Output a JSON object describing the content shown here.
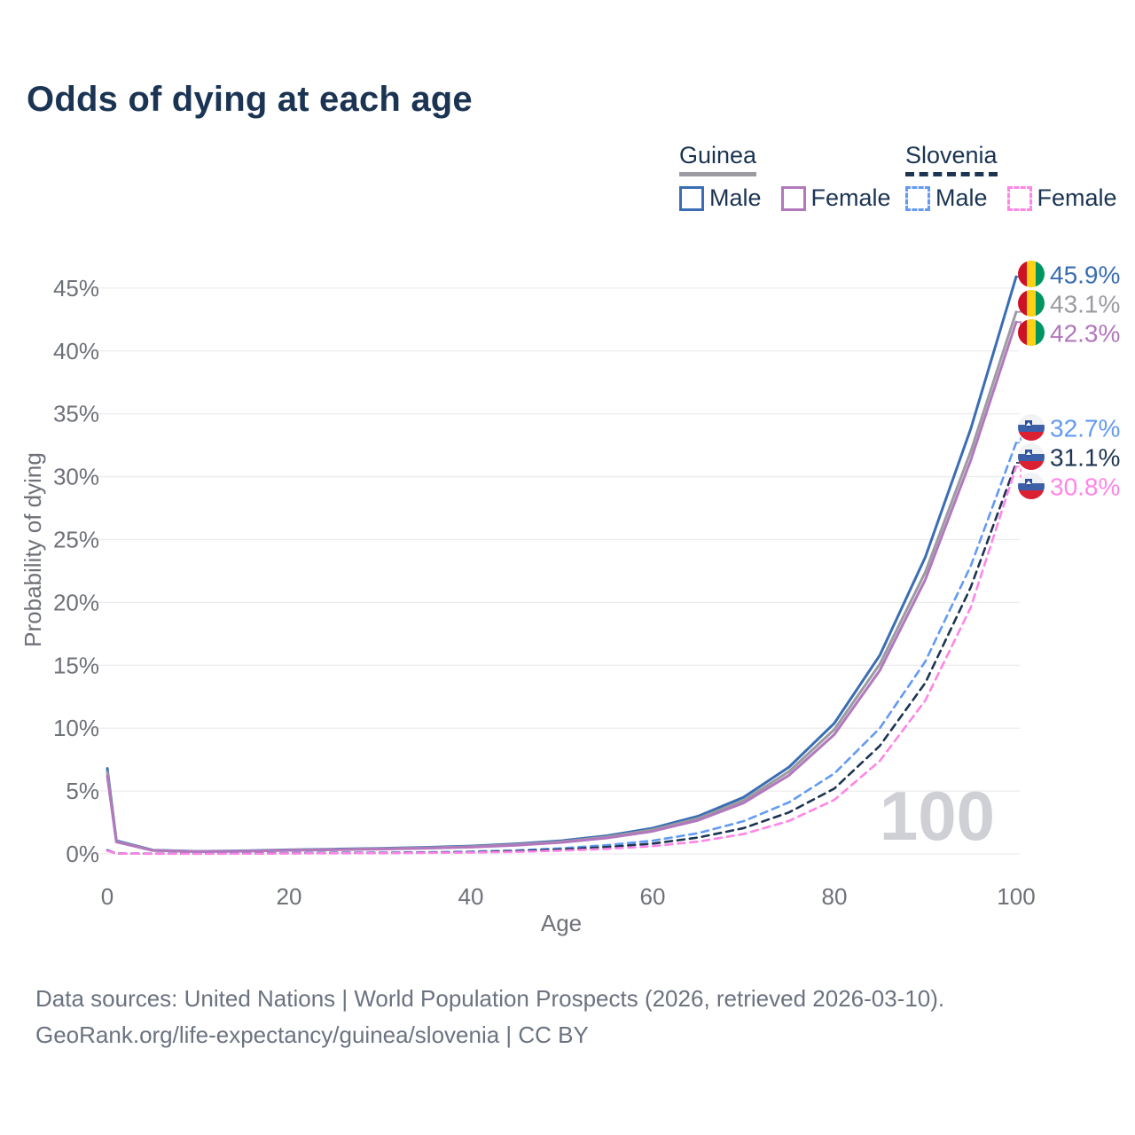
{
  "title": "Odds of dying at each age",
  "legend": {
    "groups": [
      {
        "label": "Guinea",
        "line_style": "solid",
        "combined_line_color": "#9b9ba1",
        "items": [
          {
            "label": "Male",
            "color": "#3a6db4"
          },
          {
            "label": "Female",
            "color": "#b277bd"
          }
        ]
      },
      {
        "label": "Slovenia",
        "line_style": "dashed",
        "combined_line_color": "#1d3552",
        "items": [
          {
            "label": "Male",
            "color": "#639af2"
          },
          {
            "label": "Female",
            "color": "#ff85e6"
          }
        ]
      }
    ]
  },
  "watermark_age": "100",
  "footer": {
    "line1": "Data sources: United Nations | World Population Prospects (2026, retrieved 2026-03-10).",
    "line2": "GeoRank.org/life-expectancy/guinea/slovenia | CC BY"
  },
  "chart_data": {
    "type": "line",
    "title": "Odds of dying at each age",
    "xlabel": "Age",
    "ylabel": "Probability of dying",
    "xlim": [
      0,
      100
    ],
    "ylim_pct": [
      0,
      47
    ],
    "x_ticks": [
      0,
      20,
      40,
      60,
      80,
      100
    ],
    "y_ticks_pct": [
      0,
      5,
      10,
      15,
      20,
      25,
      30,
      35,
      40,
      45
    ],
    "y_tick_labels": [
      "0%",
      "5%",
      "10%",
      "15%",
      "20%",
      "25%",
      "30%",
      "35%",
      "40%",
      "45%"
    ],
    "grid": "horizontal-only",
    "legend_position": "top-right",
    "ages": [
      0,
      1,
      5,
      10,
      15,
      20,
      25,
      30,
      35,
      40,
      45,
      50,
      55,
      60,
      65,
      70,
      75,
      80,
      85,
      90,
      95,
      100
    ],
    "series": [
      {
        "key": "guinea-male",
        "name": "Guinea Male",
        "country": "Guinea",
        "color": "#3a6db4",
        "dash": "solid",
        "end_label": "45.9%",
        "values_pct": [
          6.8,
          1.05,
          0.3,
          0.2,
          0.25,
          0.33,
          0.38,
          0.44,
          0.52,
          0.63,
          0.8,
          1.05,
          1.45,
          2.05,
          3.0,
          4.5,
          6.9,
          10.4,
          15.8,
          23.6,
          33.8,
          45.9
        ]
      },
      {
        "key": "guinea-combined",
        "name": "Guinea",
        "country": "Guinea",
        "color": "#9b9ba1",
        "dash": "solid",
        "end_label": "43.1%",
        "values_pct": [
          6.5,
          1.0,
          0.28,
          0.19,
          0.23,
          0.3,
          0.35,
          0.41,
          0.48,
          0.58,
          0.74,
          0.98,
          1.35,
          1.92,
          2.82,
          4.25,
          6.55,
          9.9,
          15.1,
          22.4,
          32.0,
          43.1
        ]
      },
      {
        "key": "guinea-female",
        "name": "Guinea Female",
        "country": "Guinea",
        "color": "#b277bd",
        "dash": "solid",
        "end_label": "42.3%",
        "values_pct": [
          6.2,
          0.95,
          0.27,
          0.18,
          0.21,
          0.28,
          0.33,
          0.38,
          0.45,
          0.54,
          0.69,
          0.92,
          1.27,
          1.8,
          2.67,
          4.05,
          6.25,
          9.5,
          14.6,
          21.8,
          31.3,
          42.3
        ]
      },
      {
        "key": "slovenia-male",
        "name": "Slovenia Male",
        "country": "Slovenia",
        "color": "#639af2",
        "dash": "dashed",
        "end_label": "32.7%",
        "values_pct": [
          0.3,
          0.04,
          0.02,
          0.02,
          0.04,
          0.07,
          0.09,
          0.1,
          0.13,
          0.18,
          0.28,
          0.45,
          0.7,
          1.05,
          1.65,
          2.6,
          4.1,
          6.4,
          10.0,
          15.3,
          22.9,
          32.7
        ]
      },
      {
        "key": "slovenia-combined",
        "name": "Slovenia",
        "country": "Slovenia",
        "color": "#1d3552",
        "dash": "dashed",
        "end_label": "31.1%",
        "values_pct": [
          0.27,
          0.03,
          0.02,
          0.02,
          0.03,
          0.05,
          0.07,
          0.08,
          0.1,
          0.14,
          0.22,
          0.35,
          0.55,
          0.82,
          1.3,
          2.05,
          3.3,
          5.2,
          8.6,
          13.6,
          21.2,
          31.1
        ]
      },
      {
        "key": "slovenia-female",
        "name": "Slovenia Female",
        "country": "Slovenia",
        "color": "#ff85e6",
        "dash": "dashed",
        "end_label": "30.8%",
        "values_pct": [
          0.24,
          0.03,
          0.01,
          0.01,
          0.02,
          0.04,
          0.05,
          0.06,
          0.08,
          0.11,
          0.16,
          0.26,
          0.4,
          0.62,
          0.98,
          1.58,
          2.62,
          4.3,
          7.4,
          12.2,
          19.6,
          30.8
        ]
      }
    ]
  }
}
